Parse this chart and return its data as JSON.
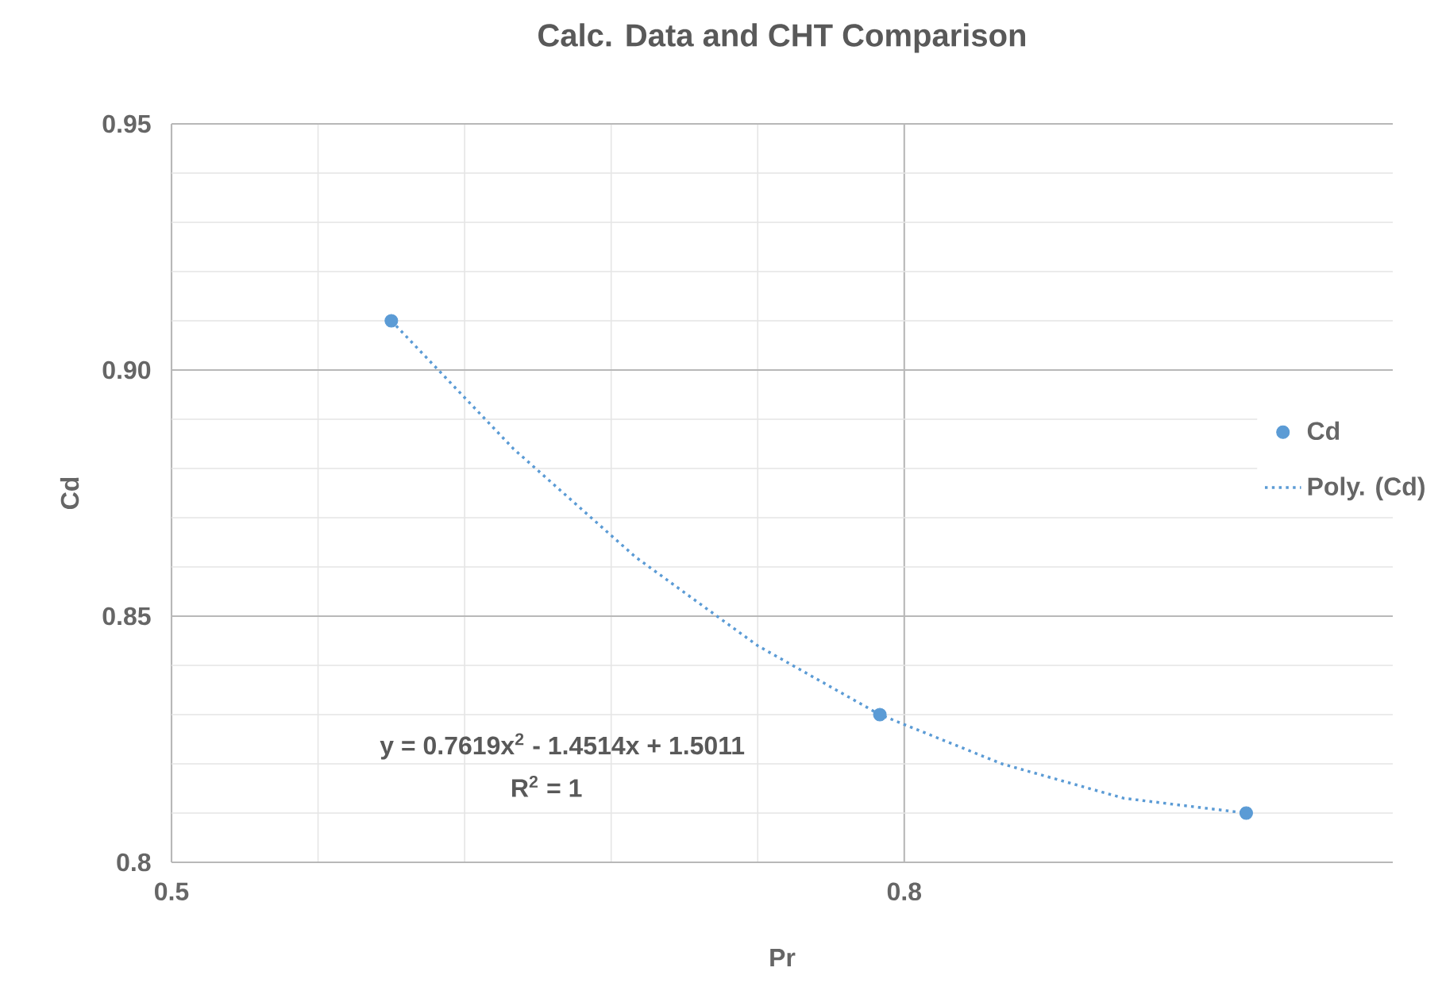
{
  "chart_data": {
    "type": "scatter",
    "title": "Calc. Data and CHT Comparison",
    "xlabel": "Pr",
    "ylabel": "Cd",
    "xlim": [
      0.5,
      1.0
    ],
    "xticks": [
      0.5,
      0.8
    ],
    "ylim": [
      0.8,
      0.95
    ],
    "yticks": [
      0.8,
      {
        "value": 0.85,
        "label": "0.85"
      },
      {
        "value": 0.9,
        "label": "0.90"
      },
      0.95
    ],
    "grid": true,
    "legend": "right",
    "series": [
      {
        "name": "Cd",
        "color": "#5b9bd5",
        "x": [
          0.59,
          0.79,
          0.94
        ],
        "values": [
          0.91,
          0.83,
          0.81
        ]
      },
      {
        "name": "Poly. (Cd)",
        "type": "line",
        "line_style": "dotted",
        "color": "#5b9bd5",
        "x": [
          0.59,
          0.64,
          0.69,
          0.74,
          0.79,
          0.84,
          0.89,
          0.94
        ],
        "values": [
          0.91,
          0.884,
          0.862,
          0.844,
          0.83,
          0.82,
          0.813,
          0.81
        ]
      }
    ],
    "annotations": [
      "y = 0.7619x$^{2}$ - 1.4514x + 1.5011",
      "R$^{2}$ = 1"
    ]
  }
}
